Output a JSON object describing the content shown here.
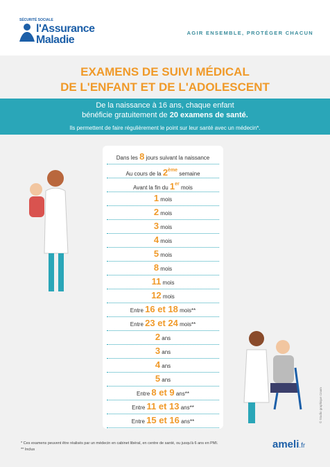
{
  "header": {
    "logo_small": "SÉCURITÉ SOCIALE",
    "logo_line1": "l'Assurance",
    "logo_line2": "Maladie",
    "tagline": "AGIR ENSEMBLE, PROTÉGER CHACUN"
  },
  "title": {
    "line1": "EXAMENS DE SUIVI MÉDICAL",
    "line2": "DE L'ENFANT ET DE L'ADOLESCENT"
  },
  "banner": {
    "line1": "De la naissance à 16 ans, chaque enfant",
    "line2_start": "bénéficie gratuitement de",
    "line2_bold": "20 examens de santé.",
    "line3": "Ils permettent de faire régulièrement le point sur leur santé avec un médecin*."
  },
  "schedule": {
    "rows": [
      {
        "pre": "Dans les",
        "num": "8",
        "post": "jours suivant la naissance"
      },
      {
        "pre": "Au cours de la",
        "num": "2",
        "sup": "ème",
        "post": "semaine"
      },
      {
        "pre": "Avant la fin du",
        "num": "1",
        "sup": "er",
        "post": "mois"
      },
      {
        "num": "1",
        "post": "mois"
      },
      {
        "num": "2",
        "post": "mois"
      },
      {
        "num": "3",
        "post": "mois"
      },
      {
        "num": "4",
        "post": "mois"
      },
      {
        "num": "5",
        "post": "mois"
      },
      {
        "num": "8",
        "post": "mois"
      },
      {
        "num": "11",
        "post": "mois"
      },
      {
        "num": "12",
        "post": "mois"
      },
      {
        "pre": "Entre",
        "num": "16 et 18",
        "post": "mois**"
      },
      {
        "pre": "Entre",
        "num": "23 et 24",
        "post": "mois**"
      },
      {
        "num": "2",
        "post": "ans"
      },
      {
        "num": "3",
        "post": "ans"
      },
      {
        "num": "4",
        "post": "ans"
      },
      {
        "num": "5",
        "post": "ans"
      },
      {
        "pre": "Entre",
        "num": "8 et 9",
        "post": "ans**"
      },
      {
        "pre": "Entre",
        "num": "11 et 13",
        "post": "ans**"
      },
      {
        "pre": "Entre",
        "num": "15 et 16",
        "post": "ans**"
      }
    ]
  },
  "footer": {
    "note1": "* Ces examens peuvent être réalisés par un médecin en cabinet libéral, en centre de santé, ou jusqu'à 6 ans en PMI.",
    "note2": "** Inclus",
    "brand": "ameli",
    "brand_ext": ".fr",
    "credit": "© Studio graphique Cnam"
  }
}
